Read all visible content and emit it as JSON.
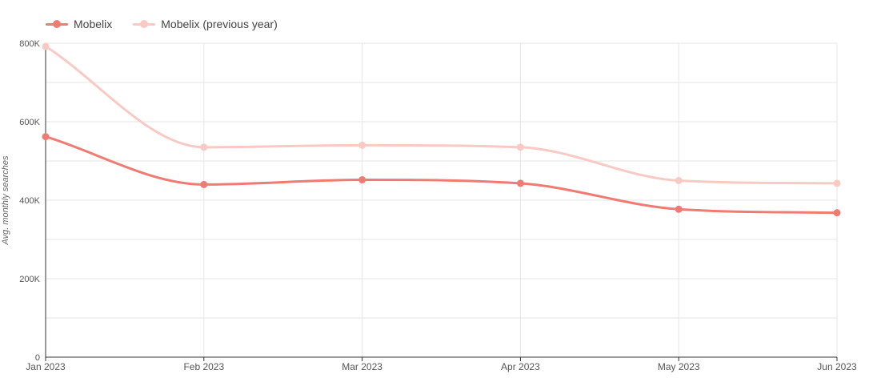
{
  "chart_data": {
    "type": "line",
    "title": "",
    "xlabel": "",
    "ylabel": "Avg. monthly searches",
    "categories": [
      "Jan 2023",
      "Feb 2023",
      "Mar 2023",
      "Apr 2023",
      "May 2023",
      "Jun 2023"
    ],
    "series": [
      {
        "name": "Mobelix",
        "color": "#f07b72",
        "values": [
          562000,
          440000,
          452000,
          443000,
          377000,
          368000
        ]
      },
      {
        "name": "Mobelix (previous year)",
        "color": "#f9c9c3",
        "values": [
          792000,
          535000,
          540000,
          535000,
          450000,
          443000
        ]
      }
    ],
    "ylim": [
      0,
      800000
    ],
    "yticks": [
      {
        "value": 0,
        "label": "0"
      },
      {
        "value": 200000,
        "label": "200K"
      },
      {
        "value": 400000,
        "label": "400K"
      },
      {
        "value": 600000,
        "label": "600K"
      },
      {
        "value": 800000,
        "label": "800K"
      }
    ],
    "minor_grid_step": 100000,
    "grid": true,
    "curve": "smooth",
    "legend_position": "top-left"
  }
}
